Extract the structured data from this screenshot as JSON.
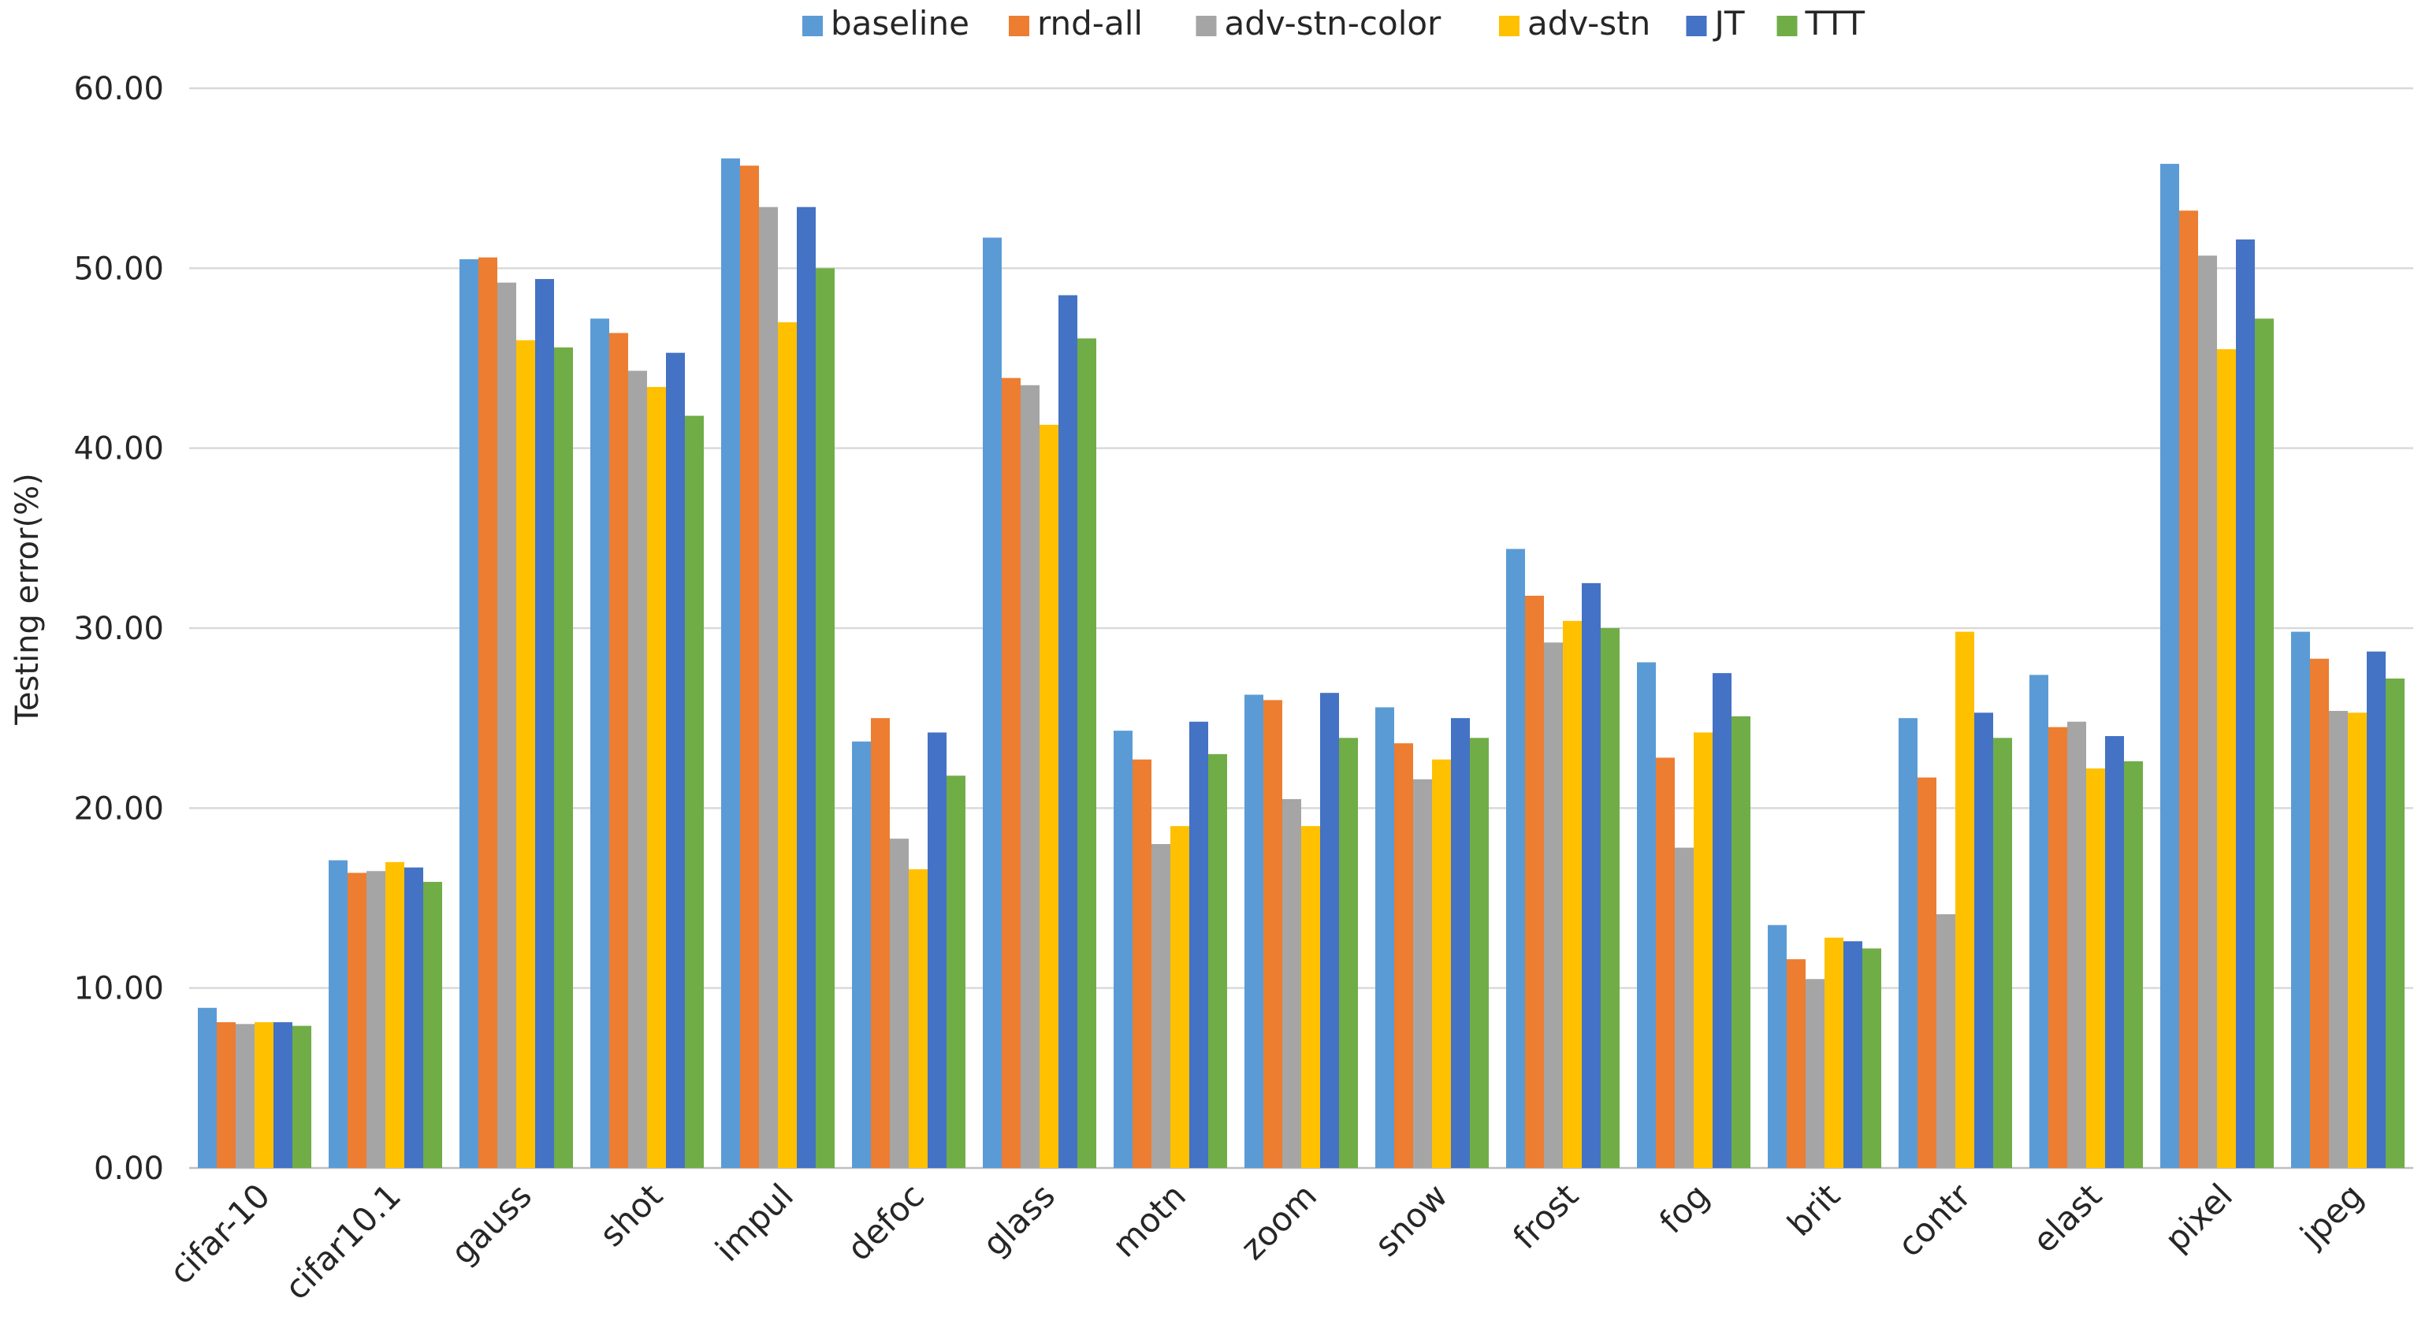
{
  "chart_data": {
    "type": "bar",
    "title": "",
    "xlabel": "",
    "ylabel": "Testing error(%)",
    "ylim": [
      0,
      60
    ],
    "yticks": [
      "0.00",
      "10.00",
      "20.00",
      "30.00",
      "40.00",
      "50.00",
      "60.00"
    ],
    "ytick_values": [
      0,
      10,
      20,
      30,
      40,
      50,
      60
    ],
    "grid": true,
    "legend_position": "top",
    "categories": [
      "cifar-10",
      "cifar10.1",
      "gauss",
      "shot",
      "impul",
      "defoc",
      "glass",
      "motn",
      "zoom",
      "snow",
      "frost",
      "fog",
      "brit",
      "contr",
      "elast",
      "pixel",
      "jpeg"
    ],
    "series": [
      {
        "name": "baseline",
        "color": "#5b9bd5",
        "values": [
          8.9,
          17.1,
          50.5,
          47.2,
          56.1,
          23.7,
          51.7,
          24.3,
          26.3,
          25.6,
          34.4,
          28.1,
          13.5,
          25.0,
          27.4,
          55.8,
          29.8
        ]
      },
      {
        "name": "rnd-all",
        "color": "#ed7d31",
        "values": [
          8.1,
          16.4,
          50.6,
          46.4,
          55.7,
          25.0,
          43.9,
          22.7,
          26.0,
          23.6,
          31.8,
          22.8,
          11.6,
          21.7,
          24.5,
          53.2,
          28.3
        ]
      },
      {
        "name": "adv-stn-color",
        "color": "#a5a5a5",
        "values": [
          8.0,
          16.5,
          49.2,
          44.3,
          53.4,
          18.3,
          43.5,
          18.0,
          20.5,
          21.6,
          29.2,
          17.8,
          10.5,
          14.1,
          24.8,
          50.7,
          25.4
        ]
      },
      {
        "name": "adv-stn",
        "color": "#ffc000",
        "values": [
          8.1,
          17.0,
          46.0,
          43.4,
          47.0,
          16.6,
          41.3,
          19.0,
          19.0,
          22.7,
          30.4,
          24.2,
          12.8,
          29.8,
          22.2,
          45.5,
          25.3
        ]
      },
      {
        "name": "JT",
        "color": "#4472c4",
        "values": [
          8.1,
          16.7,
          49.4,
          45.3,
          53.4,
          24.2,
          48.5,
          24.8,
          26.4,
          25.0,
          32.5,
          27.5,
          12.6,
          25.3,
          24.0,
          51.6,
          28.7
        ]
      },
      {
        "name": "TTT",
        "color": "#70ad47",
        "values": [
          7.9,
          15.9,
          45.6,
          41.8,
          50.0,
          21.8,
          46.1,
          23.0,
          23.9,
          23.9,
          30.0,
          25.1,
          12.2,
          23.9,
          22.6,
          47.2,
          27.2
        ]
      }
    ]
  }
}
